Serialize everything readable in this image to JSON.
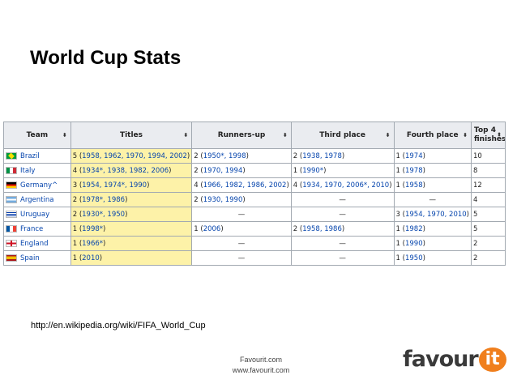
{
  "slide": {
    "title": "World Cup Stats",
    "source_url": "http://en.wikipedia.org/wiki/FIFA_World_Cup",
    "footer_line1": "Favourit.com",
    "footer_line2": "www.favourit.com",
    "logo_text": "favour",
    "logo_mark": "it"
  },
  "table": {
    "headers": [
      "Team",
      "Titles",
      "Runners-up",
      "Third place",
      "Fourth place",
      "Top 4 finishes"
    ],
    "sort_icon": "⬍",
    "rows": [
      {
        "flag": "brazil",
        "team": "Brazil",
        "titles": "5 (1958, 1962, 1970, 1994, 2002)",
        "runners_up": "2 (1950*, 1998)",
        "third": "2 (1938, 1978)",
        "fourth": "1 (1974)",
        "top4": "10"
      },
      {
        "flag": "italy",
        "team": "Italy",
        "titles": "4 (1934*, 1938, 1982, 2006)",
        "runners_up": "2 (1970, 1994)",
        "third": "1 (1990*)",
        "fourth": "1 (1978)",
        "top4": "8"
      },
      {
        "flag": "germany",
        "team": "Germany^",
        "titles": "3 (1954, 1974*, 1990)",
        "runners_up": "4 (1966, 1982, 1986, 2002)",
        "third": "4 (1934, 1970, 2006*, 2010)",
        "fourth": "1 (1958)",
        "top4": "12"
      },
      {
        "flag": "argentina",
        "team": "Argentina",
        "titles": "2 (1978*, 1986)",
        "runners_up": "2 (1930, 1990)",
        "third": "—",
        "fourth": "—",
        "top4": "4"
      },
      {
        "flag": "uruguay",
        "team": "Uruguay",
        "titles": "2 (1930*, 1950)",
        "runners_up": "—",
        "third": "—",
        "fourth": "3 (1954, 1970, 2010)",
        "top4": "5"
      },
      {
        "flag": "france",
        "team": "France",
        "titles": "1 (1998*)",
        "runners_up": "1 (2006)",
        "third": "2 (1958, 1986)",
        "fourth": "1 (1982)",
        "top4": "5"
      },
      {
        "flag": "england",
        "team": "England",
        "titles": "1 (1966*)",
        "runners_up": "—",
        "third": "—",
        "fourth": "1 (1990)",
        "top4": "2"
      },
      {
        "flag": "spain",
        "team": "Spain",
        "titles": "1 (2010)",
        "runners_up": "—",
        "third": "—",
        "fourth": "1 (1950)",
        "top4": "2"
      }
    ]
  }
}
